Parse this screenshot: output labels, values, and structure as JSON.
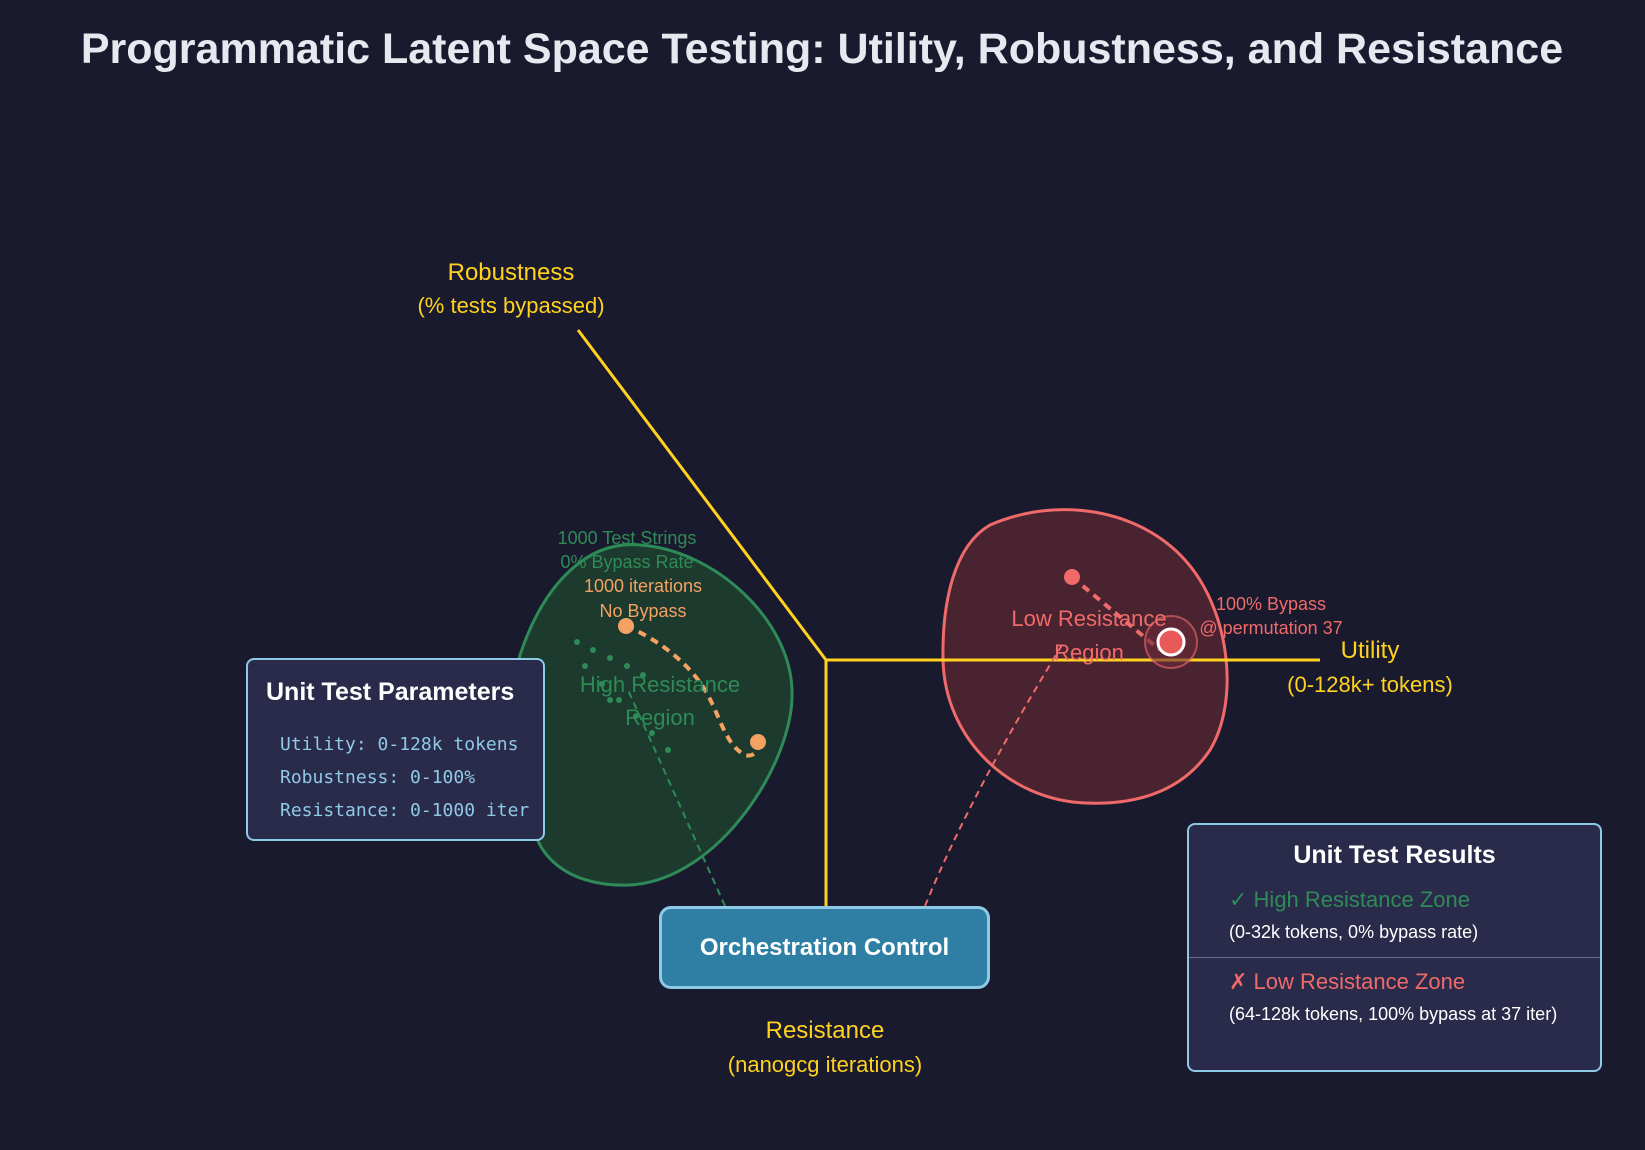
{
  "title": "Programmatic Latent Space Testing: Utility, Robustness, and Resistance",
  "axes": {
    "robustness": {
      "label": "Robustness",
      "sub": "(% tests bypassed)"
    },
    "utility": {
      "label": "Utility",
      "sub": "(0-128k+ tokens)"
    },
    "resistance": {
      "label": "Resistance",
      "sub": "(nanogcg iterations)"
    }
  },
  "high_region": {
    "label_line1": "High Resistance",
    "label_line2": "Region",
    "note1": "1000 Test Strings",
    "note2": "0% Bypass Rate",
    "iter_note1": "1000 iterations",
    "iter_note2": "No Bypass"
  },
  "low_region": {
    "label_line1": "Low Resistance",
    "label_line2": "Region",
    "note1": "100% Bypass",
    "note2": "@ permutation 37"
  },
  "parameters": {
    "title": "Unit Test Parameters",
    "lines": [
      "Utility: 0-128k tokens",
      "Robustness: 0-100%",
      "Resistance: 0-1000 iter"
    ]
  },
  "orchestration": {
    "label": "Orchestration Control"
  },
  "results": {
    "title": "Unit Test Results",
    "high": {
      "label": "✓ High Resistance Zone",
      "detail": "(0-32k tokens, 0% bypass rate)"
    },
    "low": {
      "label": "✗ Low Resistance Zone",
      "detail": "(64-128k tokens, 100% bypass at 37 iter)"
    }
  },
  "colors": {
    "background": "#1a1a2e",
    "axis": "#ffd21f",
    "high": "#2e8b57",
    "low": "#f06a6a",
    "orange": "#f4a261",
    "panel_border": "#8ecae6"
  }
}
